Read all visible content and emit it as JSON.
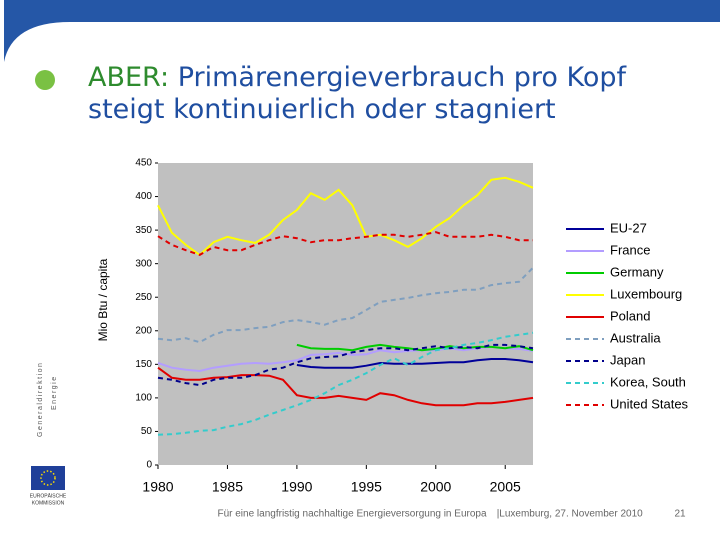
{
  "header": {
    "title_lead": "ABER:",
    "title": "Primärenergieverbrauch pro Kopf steigt kontinuierlich oder stagniert"
  },
  "sidebar": {
    "department": [
      "Generaldirektion",
      "Energie"
    ],
    "logo_text": [
      "EUROPÄISCHE",
      "KOMMISSION"
    ]
  },
  "footer": {
    "text": "Für eine langfristig nachhaltige Energieversorgung in Europa",
    "separator": "|",
    "place_date": "Luxemburg, 27. November 2010",
    "page": "21"
  },
  "chart_data": {
    "type": "line",
    "ylabel": "Mio Btu / capita",
    "x": [
      1980,
      1981,
      1982,
      1983,
      1984,
      1985,
      1986,
      1987,
      1988,
      1989,
      1990,
      1991,
      1992,
      1993,
      1994,
      1995,
      1996,
      1997,
      1998,
      1999,
      2000,
      2001,
      2002,
      2003,
      2004,
      2005,
      2006,
      2007
    ],
    "xlim": [
      1980,
      2007
    ],
    "xticks": [
      1980,
      1985,
      1990,
      1995,
      2000,
      2005
    ],
    "ylim": [
      0,
      450
    ],
    "yticks": [
      0,
      50,
      100,
      150,
      200,
      250,
      300,
      350,
      400,
      450
    ],
    "grid": false,
    "legend": "right",
    "background": "#c0c0c0",
    "series": [
      {
        "name": "EU-27",
        "color": "#000099",
        "dashed": false,
        "values": [
          null,
          null,
          null,
          null,
          null,
          null,
          null,
          null,
          null,
          null,
          149,
          146,
          145,
          145,
          145,
          148,
          152,
          151,
          151,
          151,
          152,
          153,
          153,
          156,
          158,
          158,
          156,
          153
        ]
      },
      {
        "name": "France",
        "color": "#b39dff",
        "dashed": false,
        "values": [
          152,
          145,
          142,
          140,
          145,
          148,
          151,
          152,
          151,
          153,
          156,
          164,
          165,
          167,
          164,
          165,
          171,
          168,
          170,
          171,
          171,
          174,
          171,
          174,
          176,
          174,
          173,
          170
        ]
      },
      {
        "name": "Germany",
        "color": "#00cc00",
        "dashed": false,
        "values": [
          null,
          null,
          null,
          null,
          null,
          null,
          null,
          null,
          null,
          null,
          179,
          174,
          173,
          173,
          171,
          176,
          179,
          176,
          174,
          171,
          173,
          177,
          174,
          176,
          176,
          174,
          177,
          171
        ]
      },
      {
        "name": "Luxembourg",
        "color": "#ffff00",
        "dashed": false,
        "values": [
          387,
          346,
          328,
          313,
          332,
          340,
          335,
          331,
          343,
          365,
          380,
          405,
          395,
          410,
          387,
          340,
          343,
          335,
          325,
          338,
          355,
          368,
          387,
          402,
          425,
          428,
          422,
          413
        ]
      },
      {
        "name": "Poland",
        "color": "#e00000",
        "dashed": false,
        "values": [
          145,
          130,
          127,
          127,
          130,
          131,
          134,
          134,
          133,
          127,
          104,
          100,
          100,
          103,
          100,
          97,
          107,
          104,
          97,
          92,
          89,
          89,
          89,
          92,
          92,
          94,
          97,
          100
        ]
      },
      {
        "name": "Australia",
        "color": "#7f9fbf",
        "dashed": true,
        "values": [
          188,
          186,
          189,
          183,
          194,
          201,
          201,
          204,
          206,
          213,
          216,
          213,
          209,
          216,
          219,
          231,
          243,
          246,
          249,
          253,
          256,
          258,
          261,
          261,
          268,
          271,
          273,
          294
        ]
      },
      {
        "name": "Japan",
        "color": "#00008b",
        "dashed": true,
        "values": [
          130,
          127,
          122,
          119,
          127,
          130,
          130,
          134,
          142,
          145,
          153,
          159,
          161,
          162,
          168,
          171,
          174,
          174,
          171,
          174,
          177,
          174,
          176,
          174,
          179,
          179,
          177,
          174
        ]
      },
      {
        "name": "Korea, South",
        "color": "#33cccc",
        "dashed": true,
        "values": [
          45,
          46,
          48,
          51,
          52,
          57,
          61,
          67,
          75,
          82,
          89,
          97,
          107,
          119,
          127,
          137,
          149,
          159,
          149,
          161,
          171,
          174,
          179,
          182,
          186,
          191,
          194,
          197
        ]
      },
      {
        "name": "United States",
        "color": "#e00000",
        "dashed": true,
        "values": [
          341,
          328,
          320,
          313,
          325,
          320,
          320,
          328,
          335,
          341,
          338,
          332,
          335,
          335,
          338,
          340,
          343,
          343,
          340,
          343,
          347,
          340,
          340,
          340,
          343,
          340,
          335,
          335
        ]
      }
    ]
  }
}
